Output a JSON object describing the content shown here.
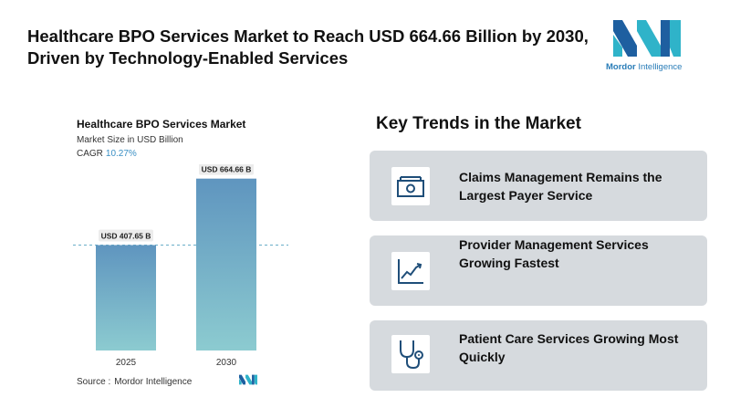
{
  "headline": "Healthcare BPO Services Market to Reach USD 664.66 Billion by 2030, Driven by Technology-Enabled Services",
  "brand": {
    "name_bold": "Mordor",
    "name_rest": " Intelligence",
    "color": "#2a7db8"
  },
  "chart_data": {
    "type": "bar",
    "title": "Healthcare BPO Services Market",
    "subtitle": "Market Size in USD Billion",
    "cagr_label": "CAGR",
    "cagr_value": "10.27%",
    "categories": [
      "2025",
      "2030"
    ],
    "values": [
      407.65,
      664.66
    ],
    "data_labels": [
      "USD 407.65 B",
      "USD 664.66 B"
    ],
    "ylim": [
      0,
      720
    ],
    "reference_line_value": 407.65,
    "bar_color_top": "#5f95bf",
    "bar_color_bottom": "#8ccbd0",
    "legend": "none",
    "grid": false
  },
  "source": {
    "label": "Source :",
    "value": "Mordor Intelligence"
  },
  "trends": {
    "title": "Key Trends in the Market",
    "items": [
      {
        "text": "Claims Management Remains the Largest Payer Service",
        "icon": "money-icon"
      },
      {
        "text": "Provider Management Services Growing Fastest",
        "icon": "line-chart-icon"
      },
      {
        "text": "Patient Care Services Growing Most Quickly",
        "icon": "stethoscope-icon"
      }
    ]
  },
  "colors": {
    "card_bg": "#d6dade",
    "icon_stroke": "#1f4e79"
  }
}
